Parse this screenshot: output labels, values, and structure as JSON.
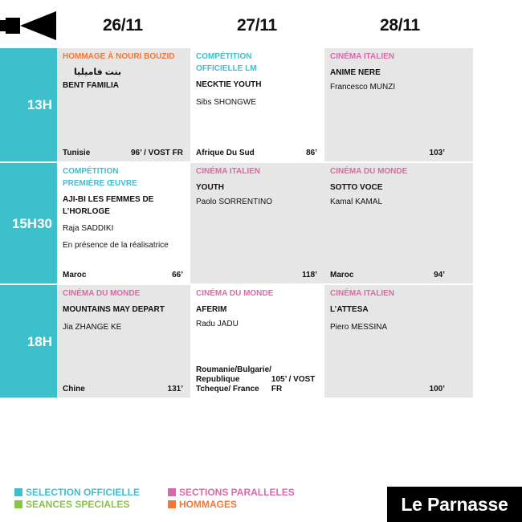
{
  "dates": [
    "26/11",
    "27/11",
    "28/11"
  ],
  "slots": [
    "13H",
    "15H30",
    "18H"
  ],
  "colors": {
    "cyan": "#3dbfcc",
    "pink": "#d86aa8",
    "green": "#8ac34a",
    "orange": "#f0773a",
    "cell_gray": "#e6e6e6"
  },
  "grid": {
    "r0c0": {
      "category": "HOMMAGE À NOURI BOUZID",
      "arabic": "بنت فاميليا",
      "title": "BENT FAMILIA",
      "director": "",
      "note": "",
      "country": "Tunisie",
      "duration": "96’ / VOST FR"
    },
    "r0c1": {
      "category": "COMPÉTITION OFFICIELLE LM",
      "title": "NECKTIE YOUTH",
      "director": "Sibs SHONGWE",
      "note": "",
      "country": "Afrique Du Sud",
      "duration": "86’"
    },
    "r0c2": {
      "category": "CINÉMA ITALIEN",
      "title": "ANIME NERE",
      "director": "Francesco MUNZI",
      "note": "",
      "country": "",
      "duration": "103’"
    },
    "r1c0": {
      "category": "COMPÉTITION PREMIÈRE ŒUVRE",
      "title": "AJI-BI LES FEMMES DE L’HORLOGE",
      "director": "Raja SADDIKI",
      "note": "En présence de la réalisatrice",
      "country": "Maroc",
      "duration": "66’"
    },
    "r1c1": {
      "category": "CINÉMA ITALIEN",
      "title": "YOUTH",
      "director": "Paolo SORRENTINO",
      "note": "",
      "country": "",
      "duration": "118’"
    },
    "r1c2": {
      "category": "CINÉMA DU MONDE",
      "title": "SOTTO VOCE",
      "director": "Kamal KAMAL",
      "note": "",
      "country": "Maroc",
      "duration": "94’"
    },
    "r2c0": {
      "category": "CINÉMA DU MONDE",
      "title": "MOUNTAINS MAY DEPART",
      "director": "Jia ZHANGE KE",
      "note": "",
      "country": "Chine",
      "duration": "131’"
    },
    "r2c1": {
      "category": "CINÉMA DU MONDE",
      "title": "AFERIM",
      "director": "Radu JADU",
      "note": "",
      "country": "Roumanie/Bulgarie/ Republique Tcheque/ France",
      "duration": "105’ / VOST FR"
    },
    "r2c2": {
      "category": "CINÉMA ITALIEN",
      "title": "L’ATTESA",
      "director": "Piero MESSINA",
      "note": "",
      "country": "",
      "duration": "100’"
    }
  },
  "legend": {
    "officielle": "SELECTION OFFICIELLE",
    "speciales": "SEANCES SPECIALES",
    "paralleles": "SECTIONS PARALLELES",
    "hommages": "HOMMAGES"
  },
  "venue": "Le Parnasse"
}
